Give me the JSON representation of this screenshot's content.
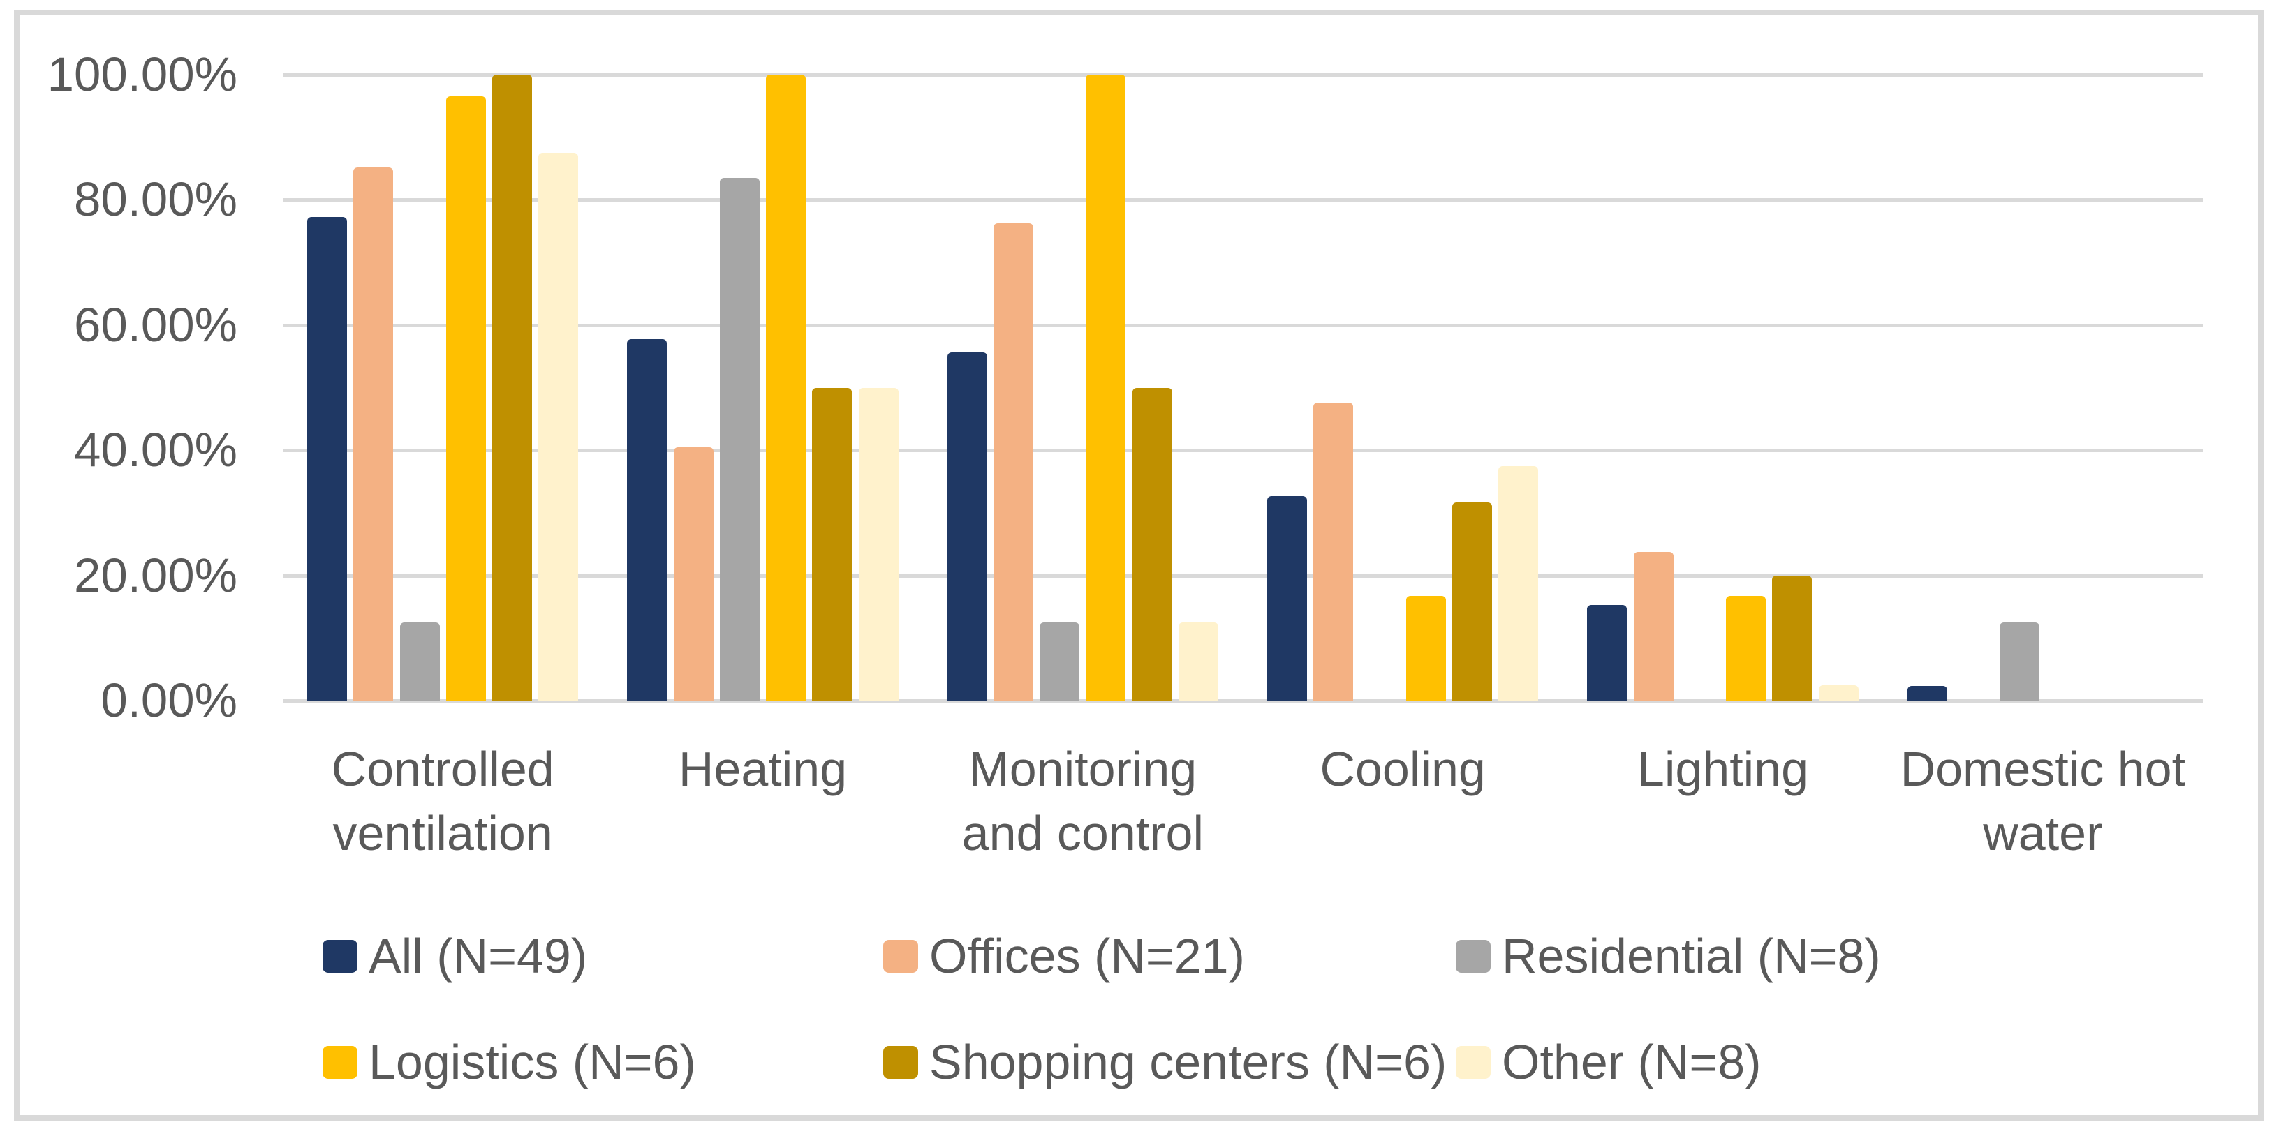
{
  "chart_data": {
    "type": "bar",
    "title": "",
    "xlabel": "",
    "ylabel": "",
    "grid": true,
    "legend_position": "bottom",
    "y_axis": {
      "min": 0,
      "max": 100,
      "tick_step": 20,
      "tick_labels": [
        "0.00%",
        "20.00%",
        "40.00%",
        "60.00%",
        "80.00%",
        "100.00%"
      ]
    },
    "categories": [
      {
        "key": "controlled-ventilation",
        "label": "Controlled ventilation",
        "lines": [
          "Controlled",
          "ventilation"
        ]
      },
      {
        "key": "heating",
        "label": "Heating",
        "lines": [
          "Heating"
        ]
      },
      {
        "key": "monitoring-and-control",
        "label": "Monitoring and control",
        "lines": [
          "Monitoring",
          "and control"
        ]
      },
      {
        "key": "cooling",
        "label": "Cooling",
        "lines": [
          "Cooling"
        ]
      },
      {
        "key": "lighting",
        "label": "Lighting",
        "lines": [
          "Lighting"
        ]
      },
      {
        "key": "domestic-hot-water",
        "label": "Domestic hot water",
        "lines": [
          "Domestic hot",
          "water"
        ]
      }
    ],
    "series": [
      {
        "key": "all",
        "name": "All (N=49)",
        "color": "#1F3864",
        "values": [
          77.3,
          57.8,
          55.6,
          32.7,
          15.3,
          2.3
        ]
      },
      {
        "key": "offices",
        "name": "Offices (N=21)",
        "color": "#F4B183",
        "values": [
          85.2,
          40.5,
          76.2,
          47.6,
          23.8,
          0
        ]
      },
      {
        "key": "residential",
        "name": "Residential (N=8)",
        "color": "#A6A6A6",
        "values": [
          12.5,
          83.5,
          12.5,
          0,
          0,
          12.5
        ]
      },
      {
        "key": "logistics",
        "name": "Logistics (N=6)",
        "color": "#FFC000",
        "values": [
          96.5,
          100,
          100,
          16.7,
          16.7,
          0
        ]
      },
      {
        "key": "shopping-centers",
        "name": "Shopping centers (N=6)",
        "color": "#BF9000",
        "values": [
          100,
          50,
          50,
          31.7,
          20,
          0
        ]
      },
      {
        "key": "other",
        "name": "Other (N=8)",
        "color": "#FFF2CC",
        "values": [
          87.5,
          50,
          12.5,
          37.5,
          2.4,
          0
        ]
      }
    ]
  },
  "colors": {
    "background": "#FFFFFF",
    "frame_border": "#D9D9D9",
    "gridline": "#D9D9D9",
    "axis_text": "#595959"
  }
}
